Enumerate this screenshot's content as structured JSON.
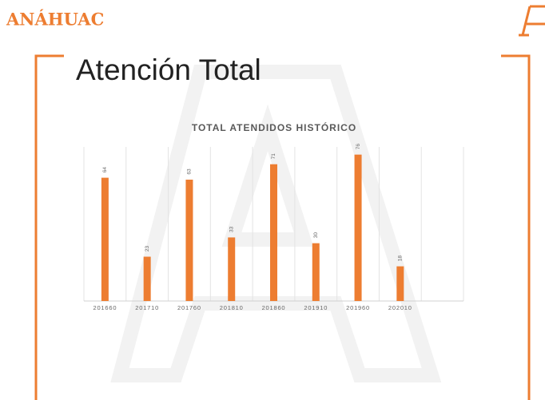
{
  "header": {
    "logo": "ANÁHUAC"
  },
  "slide": {
    "title": "Atención Total"
  },
  "chart_data": {
    "type": "bar",
    "title": "TOTAL ATENDIDOS HISTÓRICO",
    "categories": [
      "201660",
      "201710",
      "201760",
      "201810",
      "201860",
      "201910",
      "201960",
      "202010",
      null
    ],
    "values": [
      64,
      23,
      63,
      33,
      71,
      30,
      76,
      18,
      null
    ],
    "color": "#ed7d31",
    "ylim": [
      0,
      80
    ],
    "grid": true
  }
}
